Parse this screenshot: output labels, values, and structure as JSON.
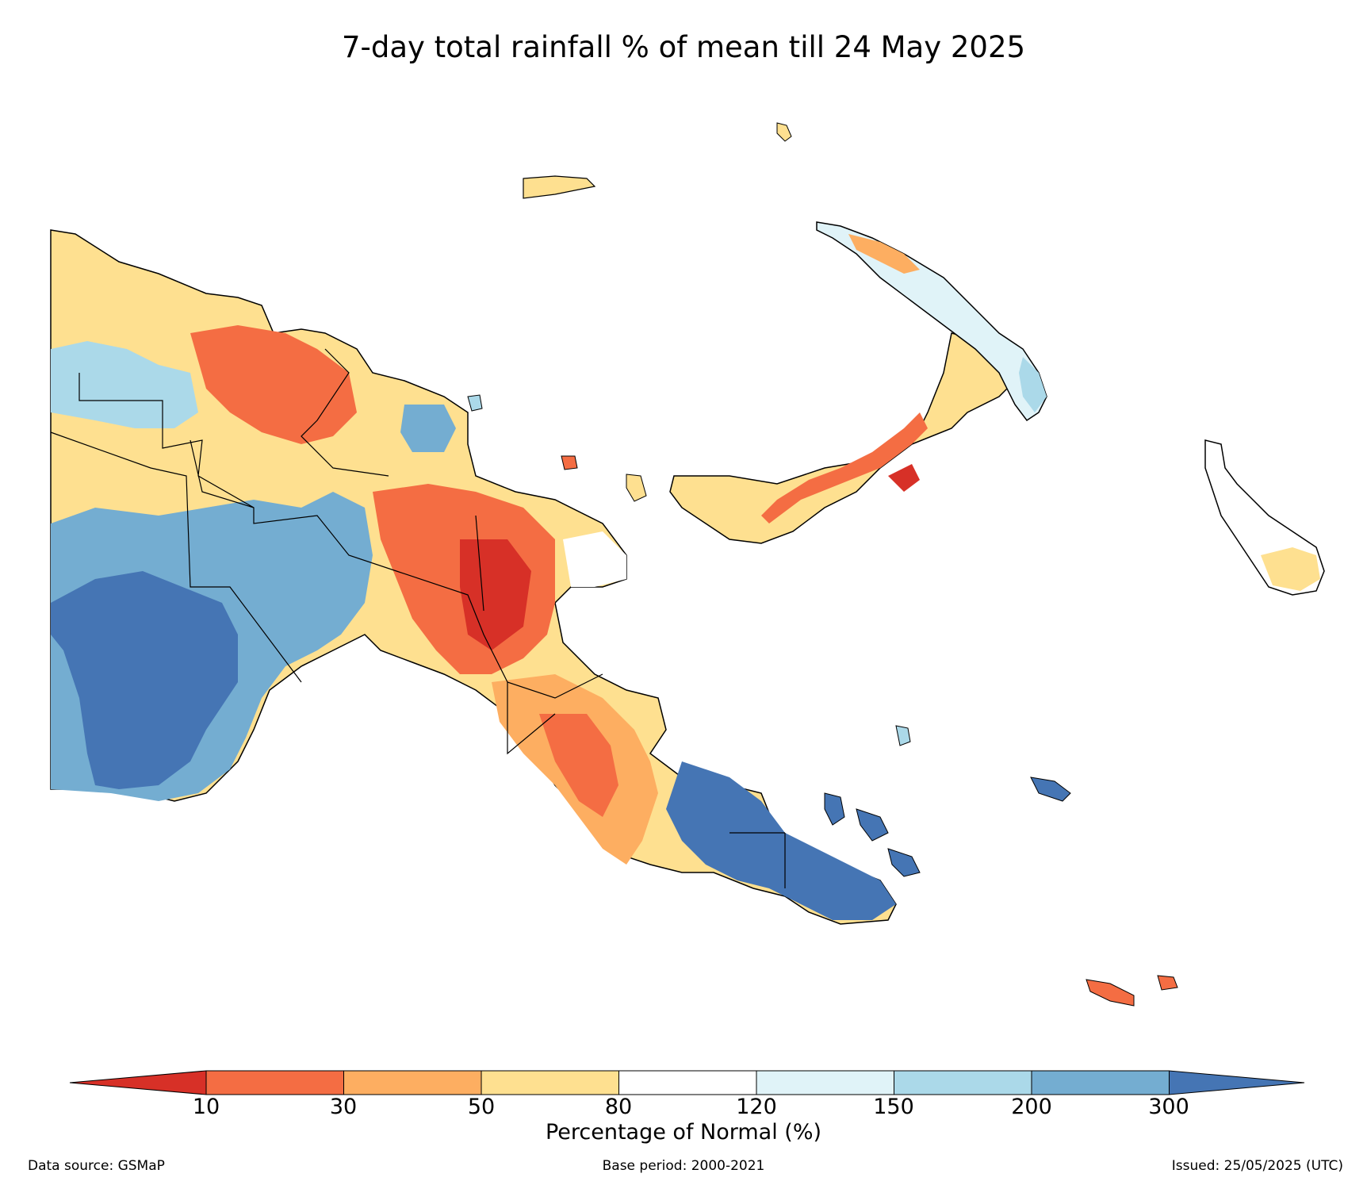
{
  "title": "7-day total rainfall % of mean till 24 May 2025",
  "colorbar": {
    "label": "Percentage of Normal (%)",
    "ticks": [
      "10",
      "30",
      "50",
      "80",
      "120",
      "150",
      "200",
      "300"
    ],
    "colors": {
      "below_10": "#d73027",
      "10_30": "#f46d43",
      "30_50": "#fdae61",
      "50_80": "#fee090",
      "80_120": "#ffffff",
      "120_150": "#e0f3f8",
      "150_200": "#abd9e9",
      "200_300": "#74add1",
      "above_300": "#4575b4"
    }
  },
  "footer": {
    "source": "Data source: GSMaP",
    "base_period": "Base period: 2000-2021",
    "issued": "Issued: 25/05/2025 (UTC)"
  }
}
